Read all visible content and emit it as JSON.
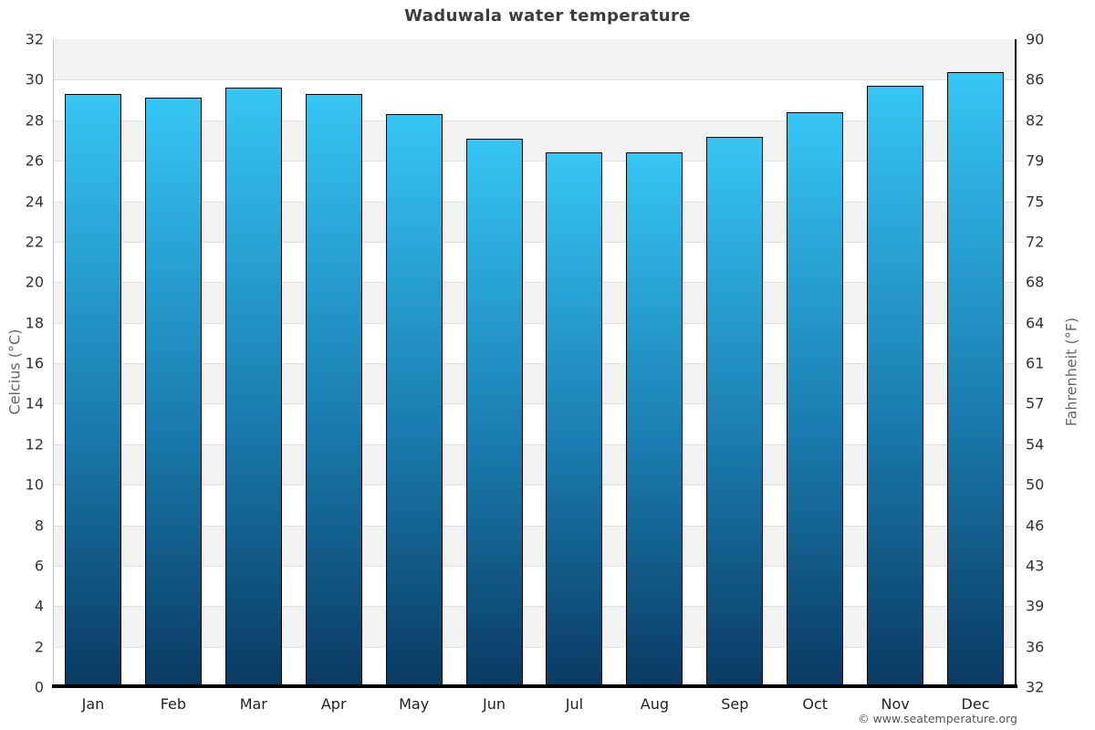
{
  "title": "Waduwala water temperature",
  "footer": {
    "copyright": "© www.seatemperature.org"
  },
  "chart_data": {
    "type": "bar",
    "title": "Waduwala water temperature",
    "categories": [
      "Jan",
      "Feb",
      "Mar",
      "Apr",
      "May",
      "Jun",
      "Jul",
      "Aug",
      "Sep",
      "Oct",
      "Nov",
      "Dec"
    ],
    "values": [
      29.3,
      29.1,
      29.6,
      29.3,
      28.3,
      27.1,
      26.4,
      26.4,
      27.2,
      28.4,
      29.7,
      30.4
    ],
    "unit": "°C",
    "ylabel_left": "Celcius (°C)",
    "ylabel_right": "Fahrenheit (°F)",
    "xlabel": "",
    "ylim": [
      0,
      32
    ],
    "ytick_step": 2,
    "yticks_left": [
      32,
      30,
      28,
      26,
      24,
      22,
      20,
      18,
      16,
      14,
      12,
      10,
      8,
      6,
      4,
      2,
      0
    ],
    "yticks_right": [
      90,
      86,
      82,
      79,
      75,
      72,
      68,
      64,
      61,
      57,
      54,
      50,
      46,
      43,
      39,
      36,
      32
    ],
    "grid": "horizontal-bands",
    "legend": "none",
    "colors": {
      "bar_gradient_top": "#36c6f4",
      "bar_gradient_mid": "#1a7cb0",
      "bar_gradient_bottom": "#093a62",
      "bar_border": "#000000",
      "band_shaded": "#f2f2f2",
      "band_plain": "#ffffff",
      "gridline": "#e0e0e0",
      "title_text": "#3d3d3d",
      "tick_text": "#333333",
      "axis_label_text": "#666666"
    }
  }
}
